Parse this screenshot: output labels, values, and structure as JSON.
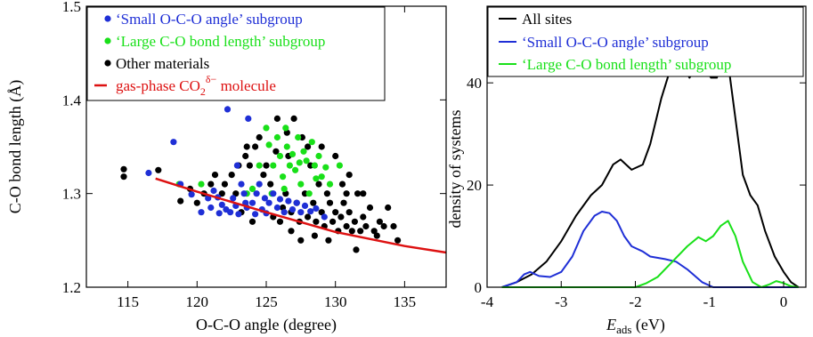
{
  "colors": {
    "small": "#1f2fd6",
    "large": "#19e019",
    "other": "#000000",
    "gas": "#dd1111",
    "all": "#000000"
  },
  "chart_data": [
    {
      "type": "scatter",
      "xlabel": "O-C-O angle (degree)",
      "ylabel": "C-O bond length (Å)",
      "xlim": [
        112,
        138
      ],
      "ylim": [
        1.2,
        1.5
      ],
      "xticks": [
        115,
        120,
        125,
        130,
        135
      ],
      "yticks": [
        1.2,
        1.3,
        1.4,
        1.5
      ],
      "legend_position": "top-left",
      "legend": {
        "small": "‘Small O-C-O angle’ subgroup",
        "large": "‘Large C-O bond length’ subgroup",
        "other": "Other materials",
        "gas_prefix": "gas-phase CO",
        "gas_sub": "2",
        "gas_sup": "δ−",
        "gas_suffix": " molecule"
      },
      "series": [
        {
          "key": "small",
          "name": "‘Small O-C-O angle’ subgroup",
          "points": [
            [
              116.5,
              1.322
            ],
            [
              118.3,
              1.355
            ],
            [
              118.8,
              1.31
            ],
            [
              119.6,
              1.299
            ],
            [
              120.3,
              1.28
            ],
            [
              120.8,
              1.295
            ],
            [
              121.2,
              1.303
            ],
            [
              121.5,
              1.296
            ],
            [
              121.8,
              1.288
            ],
            [
              122.2,
              1.39
            ],
            [
              122.4,
              1.28
            ],
            [
              122.6,
              1.295
            ],
            [
              122.8,
              1.287
            ],
            [
              122.9,
              1.33
            ],
            [
              123.0,
              1.278
            ],
            [
              123.2,
              1.31
            ],
            [
              123.4,
              1.3
            ],
            [
              123.5,
              1.29
            ],
            [
              123.6,
              1.285
            ],
            [
              123.7,
              1.38
            ],
            [
              124.0,
              1.29
            ],
            [
              124.2,
              1.278
            ],
            [
              124.3,
              1.3
            ],
            [
              124.5,
              1.31
            ],
            [
              124.7,
              1.283
            ],
            [
              124.9,
              1.295
            ],
            [
              125.0,
              1.279
            ],
            [
              125.2,
              1.29
            ],
            [
              125.5,
              1.3
            ],
            [
              125.8,
              1.285
            ],
            [
              126.0,
              1.294
            ],
            [
              126.3,
              1.28
            ],
            [
              126.6,
              1.292
            ],
            [
              126.9,
              1.283
            ],
            [
              127.2,
              1.29
            ],
            [
              127.5,
              1.28
            ],
            [
              127.8,
              1.287
            ],
            [
              128.2,
              1.281
            ],
            [
              128.6,
              1.284
            ],
            [
              129.2,
              1.275
            ],
            [
              121.0,
              1.285
            ],
            [
              121.6,
              1.279
            ],
            [
              122.1,
              1.283
            ]
          ]
        },
        {
          "key": "large",
          "name": "‘Large C-O bond length’ subgroup",
          "points": [
            [
              118.7,
              1.31
            ],
            [
              120.3,
              1.31
            ],
            [
              123.6,
              1.3
            ],
            [
              124.0,
              1.305
            ],
            [
              124.5,
              1.33
            ],
            [
              125.0,
              1.37
            ],
            [
              125.2,
              1.352
            ],
            [
              125.5,
              1.33
            ],
            [
              125.8,
              1.36
            ],
            [
              126.0,
              1.34
            ],
            [
              126.2,
              1.318
            ],
            [
              126.4,
              1.37
            ],
            [
              126.5,
              1.35
            ],
            [
              126.7,
              1.33
            ],
            [
              126.9,
              1.342
            ],
            [
              127.1,
              1.325
            ],
            [
              127.3,
              1.36
            ],
            [
              127.5,
              1.31
            ],
            [
              127.7,
              1.345
            ],
            [
              127.9,
              1.335
            ],
            [
              128.1,
              1.3
            ],
            [
              128.3,
              1.355
            ],
            [
              128.5,
              1.33
            ],
            [
              128.8,
              1.34
            ],
            [
              129.0,
              1.318
            ],
            [
              129.3,
              1.328
            ],
            [
              129.6,
              1.31
            ],
            [
              130.3,
              1.33
            ],
            [
              126.3,
              1.305
            ],
            [
              127.4,
              1.333
            ],
            [
              125.4,
              1.3
            ],
            [
              128.6,
              1.316
            ]
          ]
        },
        {
          "key": "other",
          "name": "Other materials",
          "points": [
            [
              114.7,
              1.326
            ],
            [
              114.7,
              1.318
            ],
            [
              117.2,
              1.325
            ],
            [
              118.8,
              1.292
            ],
            [
              119.5,
              1.305
            ],
            [
              120.0,
              1.29
            ],
            [
              120.5,
              1.3
            ],
            [
              121.0,
              1.31
            ],
            [
              121.3,
              1.32
            ],
            [
              121.8,
              1.3
            ],
            [
              122.0,
              1.31
            ],
            [
              122.5,
              1.32
            ],
            [
              123.0,
              1.33
            ],
            [
              123.2,
              1.28
            ],
            [
              123.5,
              1.34
            ],
            [
              123.8,
              1.33
            ],
            [
              124.0,
              1.27
            ],
            [
              124.2,
              1.35
            ],
            [
              124.5,
              1.36
            ],
            [
              124.8,
              1.32
            ],
            [
              125.0,
              1.33
            ],
            [
              125.3,
              1.31
            ],
            [
              125.5,
              1.275
            ],
            [
              125.7,
              1.345
            ],
            [
              126.0,
              1.27
            ],
            [
              126.2,
              1.285
            ],
            [
              126.4,
              1.3
            ],
            [
              126.6,
              1.34
            ],
            [
              126.8,
              1.28
            ],
            [
              127.0,
              1.38
            ],
            [
              127.2,
              1.29
            ],
            [
              127.4,
              1.27
            ],
            [
              127.6,
              1.36
            ],
            [
              127.8,
              1.3
            ],
            [
              128.0,
              1.275
            ],
            [
              128.2,
              1.33
            ],
            [
              128.4,
              1.29
            ],
            [
              128.6,
              1.27
            ],
            [
              128.8,
              1.31
            ],
            [
              129.0,
              1.28
            ],
            [
              129.2,
              1.265
            ],
            [
              129.4,
              1.3
            ],
            [
              129.6,
              1.29
            ],
            [
              129.8,
              1.27
            ],
            [
              130.0,
              1.28
            ],
            [
              130.2,
              1.26
            ],
            [
              130.4,
              1.275
            ],
            [
              130.6,
              1.29
            ],
            [
              130.8,
              1.265
            ],
            [
              131.0,
              1.28
            ],
            [
              131.2,
              1.26
            ],
            [
              131.4,
              1.27
            ],
            [
              131.6,
              1.3
            ],
            [
              131.8,
              1.26
            ],
            [
              132.0,
              1.275
            ],
            [
              132.2,
              1.265
            ],
            [
              132.5,
              1.285
            ],
            [
              132.8,
              1.26
            ],
            [
              133.0,
              1.255
            ],
            [
              133.2,
              1.27
            ],
            [
              133.5,
              1.265
            ],
            [
              133.8,
              1.285
            ],
            [
              134.2,
              1.265
            ],
            [
              134.5,
              1.25
            ],
            [
              131.5,
              1.24
            ],
            [
              130.5,
              1.31
            ],
            [
              129.0,
              1.35
            ],
            [
              128.0,
              1.35
            ],
            [
              126.5,
              1.365
            ],
            [
              125.8,
              1.38
            ],
            [
              131.0,
              1.32
            ],
            [
              132.0,
              1.3
            ],
            [
              130.0,
              1.34
            ],
            [
              129.5,
              1.25
            ],
            [
              128.5,
              1.255
            ],
            [
              127.5,
              1.25
            ],
            [
              126.8,
              1.26
            ],
            [
              130.8,
              1.3
            ],
            [
              123.6,
              1.35
            ],
            [
              122.8,
              1.3
            ]
          ]
        },
        {
          "key": "gas",
          "name": "gas-phase CO2δ− molecule",
          "type": "line",
          "points": [
            [
              117,
              1.316
            ],
            [
              120,
              1.302
            ],
            [
              125,
              1.28
            ],
            [
              130,
              1.259
            ],
            [
              135,
              1.244
            ],
            [
              138,
              1.237
            ]
          ]
        }
      ]
    },
    {
      "type": "line",
      "xlabel": "E",
      "xlabel_sub": "ads",
      "xlabel_unit": " (eV)",
      "ylabel": "density of systems",
      "xlim": [
        -4,
        0.3
      ],
      "ylim": [
        0,
        55
      ],
      "xticks": [
        -4,
        -3,
        -2,
        -1,
        0
      ],
      "yticks": [
        0,
        20,
        40
      ],
      "legend_position": "top-left",
      "series": [
        {
          "key": "all",
          "name": "All sites",
          "points": [
            [
              -3.8,
              0
            ],
            [
              -3.6,
              1
            ],
            [
              -3.4,
              2.5
            ],
            [
              -3.2,
              5
            ],
            [
              -3.0,
              9
            ],
            [
              -2.8,
              14
            ],
            [
              -2.6,
              18
            ],
            [
              -2.45,
              20
            ],
            [
              -2.3,
              24
            ],
            [
              -2.2,
              25
            ],
            [
              -2.05,
              23
            ],
            [
              -1.9,
              24
            ],
            [
              -1.8,
              28
            ],
            [
              -1.65,
              37
            ],
            [
              -1.5,
              44
            ],
            [
              -1.38,
              44
            ],
            [
              -1.27,
              41
            ],
            [
              -1.18,
              43
            ],
            [
              -1.1,
              44
            ],
            [
              -0.98,
              41
            ],
            [
              -0.9,
              41
            ],
            [
              -0.83,
              45
            ],
            [
              -0.75,
              44
            ],
            [
              -0.65,
              33
            ],
            [
              -0.55,
              22
            ],
            [
              -0.45,
              18
            ],
            [
              -0.35,
              16
            ],
            [
              -0.25,
              11
            ],
            [
              -0.12,
              6
            ],
            [
              0,
              3
            ],
            [
              0.1,
              1
            ],
            [
              0.2,
              0
            ]
          ]
        },
        {
          "key": "small",
          "name": "‘Small O-C-O angle’ subgroup",
          "points": [
            [
              -3.8,
              0
            ],
            [
              -3.6,
              1
            ],
            [
              -3.5,
              2.5
            ],
            [
              -3.42,
              3
            ],
            [
              -3.3,
              2.2
            ],
            [
              -3.15,
              2
            ],
            [
              -3.0,
              3
            ],
            [
              -2.85,
              6
            ],
            [
              -2.7,
              11
            ],
            [
              -2.55,
              14
            ],
            [
              -2.45,
              14.8
            ],
            [
              -2.35,
              14.5
            ],
            [
              -2.25,
              13
            ],
            [
              -2.15,
              10
            ],
            [
              -2.05,
              8
            ],
            [
              -1.9,
              7
            ],
            [
              -1.8,
              6
            ],
            [
              -1.6,
              5.5
            ],
            [
              -1.45,
              5
            ],
            [
              -1.3,
              3.5
            ],
            [
              -1.1,
              1
            ],
            [
              -0.95,
              0
            ],
            [
              -0.5,
              0
            ],
            [
              0.2,
              0
            ]
          ]
        },
        {
          "key": "large",
          "name": "‘Large C-O bond length’ subgroup",
          "points": [
            [
              -3.8,
              0
            ],
            [
              -2.0,
              0
            ],
            [
              -1.85,
              0.8
            ],
            [
              -1.7,
              2
            ],
            [
              -1.5,
              5
            ],
            [
              -1.3,
              8
            ],
            [
              -1.15,
              9.8
            ],
            [
              -1.05,
              9
            ],
            [
              -0.95,
              10
            ],
            [
              -0.85,
              12
            ],
            [
              -0.75,
              13
            ],
            [
              -0.65,
              10
            ],
            [
              -0.55,
              5
            ],
            [
              -0.42,
              1
            ],
            [
              -0.3,
              0
            ],
            [
              -0.2,
              0.5
            ],
            [
              -0.1,
              1.2
            ],
            [
              0,
              0.8
            ],
            [
              0.1,
              0.2
            ],
            [
              0.2,
              0
            ]
          ]
        }
      ]
    }
  ]
}
